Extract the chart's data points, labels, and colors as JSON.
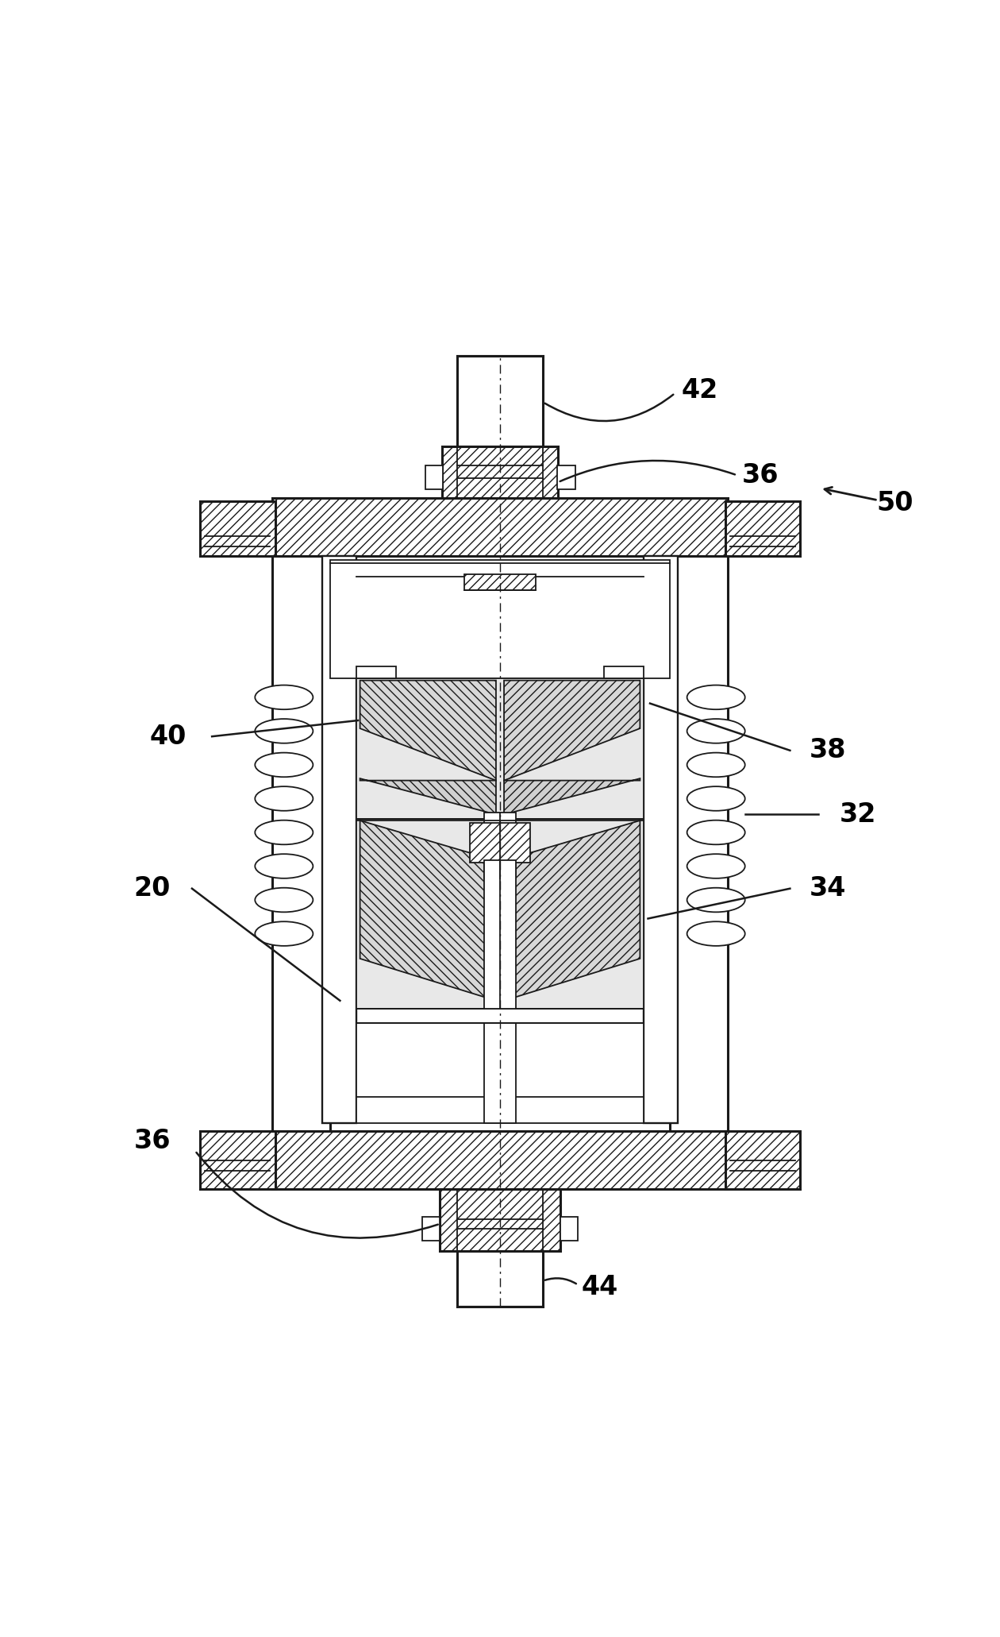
{
  "background_color": "#ffffff",
  "line_color": "#1a1a1a",
  "label_color": "#000000",
  "figsize": [
    12.6,
    20.61
  ],
  "dpi": 100
}
